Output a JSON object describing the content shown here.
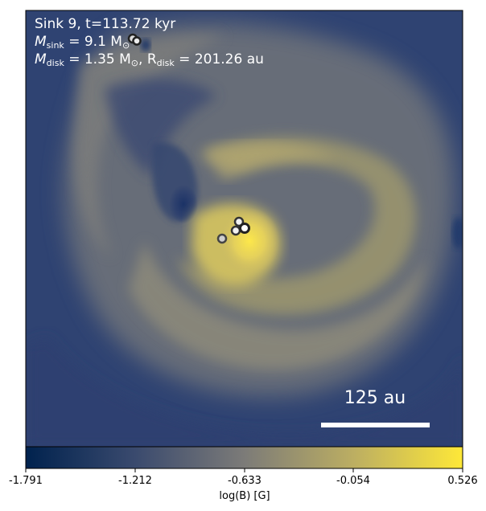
{
  "panel": {
    "title": "Sink 9, t=113.72 kyr",
    "sink_mass_label": "M",
    "sink_mass_sub": "sink",
    "sink_mass_value": " = 9.1 M",
    "sun_symbol": "⊙",
    "disk_mass_label": "M",
    "disk_mass_sub": "disk",
    "disk_mass_value": " = 1.35 M",
    "disk_radius_sep": ", R",
    "disk_radius_sub": "disk",
    "disk_radius_value": " = 201.26 au"
  },
  "scalebar": {
    "label": "125 au"
  },
  "colorbar": {
    "label": "log(B) [G]",
    "ticks": [
      "-1.791",
      "-1.212",
      "-0.633",
      "-0.054",
      "0.526"
    ],
    "colors": [
      "#00224e",
      "#7c7b78",
      "#fee838"
    ]
  }
}
